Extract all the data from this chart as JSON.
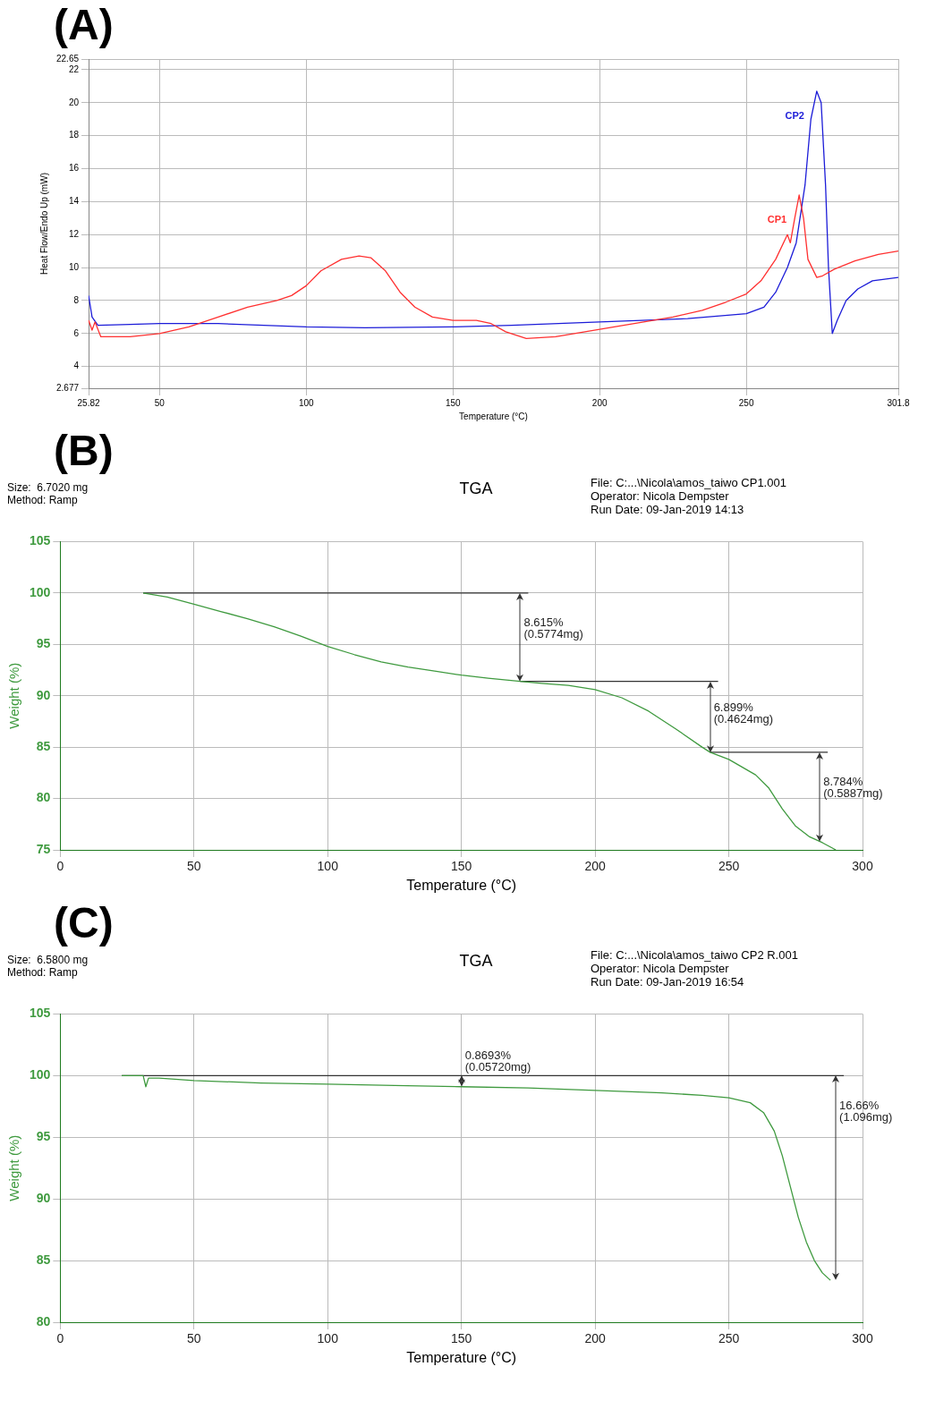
{
  "chart_data": [
    {
      "type": "line",
      "title": "(A)",
      "xlabel": "Temperature (°C)",
      "ylabel": "Heat Flow/Endo Up (mW)",
      "xlim": [
        25.82,
        301.8
      ],
      "xticks": [
        25.82,
        50,
        100,
        150,
        200,
        250,
        301.8
      ],
      "ylim": [
        2.677,
        22.65
      ],
      "yticks": [
        2.677,
        4,
        6,
        8,
        10,
        12,
        14,
        16,
        18,
        20,
        22,
        22.65
      ],
      "grid": true,
      "legend": false,
      "series": [
        {
          "name": "CP1",
          "color": "#ff3030",
          "x": [
            25.82,
            27,
            28,
            30,
            40,
            50,
            60,
            70,
            80,
            90,
            95,
            100,
            105,
            112,
            118,
            122,
            127,
            132,
            137,
            143,
            150,
            158,
            163,
            168,
            175,
            185,
            195,
            205,
            215,
            225,
            235,
            243,
            250,
            255,
            260,
            264,
            265,
            266.5,
            268,
            269.5,
            271,
            274,
            276,
            280,
            287,
            295,
            301.8
          ],
          "values": [
            6.8,
            6.2,
            6.7,
            5.8,
            5.8,
            6.0,
            6.4,
            7.0,
            7.6,
            8.0,
            8.3,
            8.9,
            9.8,
            10.5,
            10.7,
            10.6,
            9.8,
            8.5,
            7.6,
            7.0,
            6.8,
            6.8,
            6.6,
            6.1,
            5.7,
            5.8,
            6.1,
            6.4,
            6.7,
            7.0,
            7.4,
            7.9,
            8.4,
            9.2,
            10.5,
            12.0,
            11.5,
            13.0,
            14.4,
            13.0,
            10.5,
            9.4,
            9.5,
            9.9,
            10.4,
            10.8,
            11.0
          ]
        },
        {
          "name": "CP2",
          "color": "#1c1cd8",
          "x": [
            25.82,
            27,
            29,
            40,
            50,
            70,
            100,
            120,
            150,
            170,
            200,
            230,
            250,
            256,
            260,
            264,
            267,
            270,
            272,
            274,
            275.5,
            277,
            278,
            279.3,
            281,
            284,
            288,
            293,
            301.8
          ],
          "values": [
            8.3,
            7.0,
            6.5,
            6.55,
            6.6,
            6.6,
            6.4,
            6.35,
            6.4,
            6.5,
            6.7,
            6.9,
            7.2,
            7.6,
            8.5,
            10.0,
            11.5,
            15.0,
            19.0,
            20.7,
            20.0,
            15.0,
            10.0,
            6.0,
            6.8,
            8.0,
            8.7,
            9.2,
            9.4
          ]
        }
      ]
    },
    {
      "type": "line",
      "title": "(B)",
      "subtitle": "TGA",
      "xlabel": "Temperature (°C)",
      "ylabel": "Weight (%)",
      "xlim": [
        0,
        300
      ],
      "xticks": [
        0,
        50,
        100,
        150,
        200,
        250,
        300
      ],
      "ylim": [
        75,
        105
      ],
      "yticks": [
        75,
        80,
        85,
        90,
        95,
        100,
        105
      ],
      "grid": true,
      "legend": false,
      "annotations": [
        "Size:  6.7020 mg\nMethod: Ramp",
        "File: C:...\\Nicola\\amos_taiwo CP1.001\nOperator: Nicola Dempster\nRun Date: 09-Jan-2019 14:13",
        {
          "text": "8.615%\n(0.5774mg)",
          "x": 172,
          "y": 100
        },
        {
          "text": "6.899%\n(0.4624mg)",
          "x": 243,
          "y": 91.4
        },
        {
          "text": "8.784%\n(0.5887mg)",
          "x": 284,
          "y": 84.5
        }
      ],
      "series": [
        {
          "color": "#3f9a3f",
          "x": [
            31,
            40,
            50,
            60,
            70,
            80,
            90,
            100,
            110,
            120,
            130,
            140,
            150,
            160,
            172,
            180,
            190,
            200,
            210,
            220,
            230,
            240,
            243,
            250,
            260,
            265,
            270,
            275,
            280,
            285,
            290
          ],
          "values": [
            100.0,
            99.6,
            98.9,
            98.2,
            97.5,
            96.7,
            95.8,
            94.8,
            94.0,
            93.3,
            92.8,
            92.4,
            92.0,
            91.7,
            91.4,
            91.2,
            91.0,
            90.6,
            89.8,
            88.5,
            86.8,
            85.0,
            84.5,
            83.8,
            82.3,
            81.0,
            79.0,
            77.3,
            76.3,
            75.7,
            75.0
          ]
        },
        {
          "color": "#333333",
          "x": [
            31,
            175
          ],
          "values": [
            100,
            100
          ]
        },
        {
          "color": "#333333",
          "x": [
            172,
            246
          ],
          "values": [
            91.4,
            91.4
          ]
        },
        {
          "color": "#333333",
          "x": [
            243,
            287
          ],
          "values": [
            84.5,
            84.5
          ]
        }
      ]
    },
    {
      "type": "line",
      "title": "(C)",
      "subtitle": "TGA",
      "xlabel": "Temperature (°C)",
      "ylabel": "Weight (%)",
      "xlim": [
        0,
        300
      ],
      "xticks": [
        0,
        50,
        100,
        150,
        200,
        250,
        300
      ],
      "ylim": [
        80,
        105
      ],
      "yticks": [
        80,
        85,
        90,
        95,
        100,
        105
      ],
      "grid": true,
      "legend": false,
      "annotations": [
        "Size:  6.5800 mg\nMethod: Ramp",
        "File: C:...\\Nicola\\amos_taiwo CP2 R.001\nOperator: Nicola Dempster\nRun Date: 09-Jan-2019 16:54",
        {
          "text": "0.8693%\n(0.05720mg)",
          "x": 150,
          "y": 100
        },
        {
          "text": "16.66%\n(1.096mg)",
          "x": 290,
          "y": 100
        }
      ],
      "series": [
        {
          "color": "#3f9a3f",
          "x": [
            23,
            31,
            32,
            33,
            37,
            50,
            75,
            100,
            125,
            150,
            175,
            200,
            225,
            240,
            250,
            258,
            263,
            267,
            270,
            273,
            276,
            279,
            282,
            285,
            288
          ],
          "values": [
            100.0,
            100.0,
            99.1,
            99.8,
            99.8,
            99.6,
            99.4,
            99.3,
            99.2,
            99.1,
            99.0,
            98.8,
            98.6,
            98.4,
            98.2,
            97.8,
            97.0,
            95.5,
            93.5,
            91.0,
            88.5,
            86.5,
            85.0,
            84.0,
            83.4
          ]
        },
        {
          "color": "#333333",
          "x": [
            23,
            293
          ],
          "values": [
            100,
            100
          ]
        }
      ]
    }
  ]
}
